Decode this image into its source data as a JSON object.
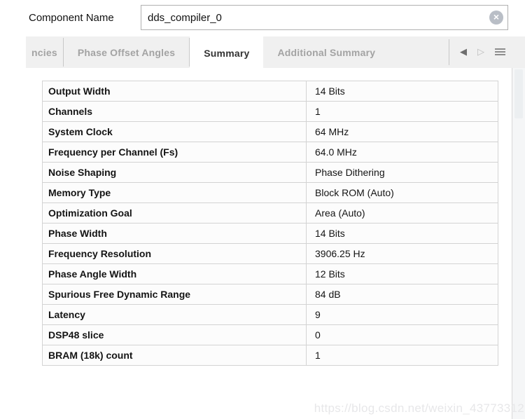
{
  "header": {
    "component_name_label": "Component Name",
    "component_name_value": "dds_compiler_0"
  },
  "icons": {
    "clear_glyph": "×",
    "prev_glyph": "◀",
    "next_glyph": "▷"
  },
  "tabs": {
    "active": "Summary",
    "items": [
      {
        "label": "ncies"
      },
      {
        "label": "Phase Offset Angles"
      },
      {
        "label": "Summary"
      },
      {
        "label": "Additional Summary"
      }
    ]
  },
  "summary_table": {
    "rows": [
      {
        "label": "Output Width",
        "value": "14 Bits"
      },
      {
        "label": "Channels",
        "value": "1"
      },
      {
        "label": "System Clock",
        "value": "64 MHz"
      },
      {
        "label": "Frequency per Channel (Fs)",
        "value": "64.0 MHz"
      },
      {
        "label": "Noise Shaping",
        "value": "Phase Dithering"
      },
      {
        "label": "Memory Type",
        "value": "Block ROM (Auto)"
      },
      {
        "label": "Optimization Goal",
        "value": "Area (Auto)"
      },
      {
        "label": "Phase Width",
        "value": "14 Bits"
      },
      {
        "label": "Frequency Resolution",
        "value": "3906.25 Hz"
      },
      {
        "label": "Phase Angle Width",
        "value": "12 Bits"
      },
      {
        "label": "Spurious Free Dynamic Range",
        "value": "84 dB"
      },
      {
        "label": "Latency",
        "value": "9"
      },
      {
        "label": "DSP48 slice",
        "value": "0"
      },
      {
        "label": "BRAM (18k) count",
        "value": "1"
      }
    ]
  },
  "watermark": "https://blog.csdn.net/weixin_43773312",
  "colors": {
    "tab_bar_bg": "#f0f0f0",
    "active_tab_text": "#333333",
    "inactive_tab_text": "#a3a3a3",
    "table_border": "#a8a8a8",
    "cell_bg": "#fcfcfc",
    "clear_icon_bg": "#b9bec6",
    "watermark_text": "#e7e7e9"
  }
}
